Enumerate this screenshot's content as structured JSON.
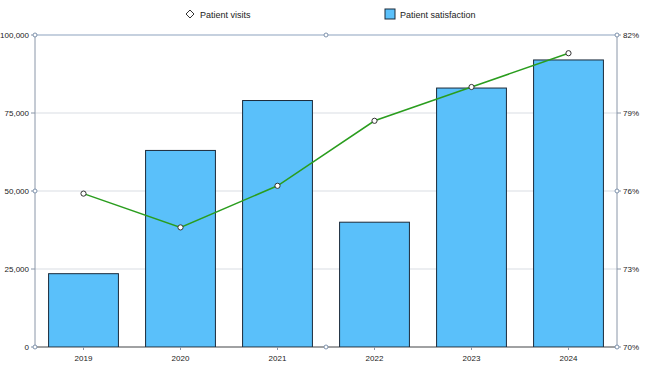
{
  "chart_data": {
    "type": "bar",
    "categories": [
      "2019",
      "2020",
      "2021",
      "2022",
      "2023",
      "2024"
    ],
    "series": [
      {
        "name": "Patient visits",
        "type": "line",
        "axis": "y2",
        "color": "#2a9d1e",
        "marker": "circle",
        "line_style": "solid",
        "values": [
          75.9,
          74.6,
          76.2,
          78.7,
          80.0,
          81.3
        ]
      },
      {
        "name": "Patient satisfaction",
        "type": "bar",
        "color": "#5ac0fa",
        "values": [
          23500,
          63000,
          79000,
          40000,
          83000,
          92000
        ]
      }
    ],
    "ylim": [
      0,
      100000
    ],
    "yticks": [
      0,
      {
        "value": 25000,
        "label": "25,000"
      },
      {
        "value": 50000,
        "label": "50,000"
      },
      {
        "value": 75000,
        "label": "75,000"
      },
      {
        "value": 100000,
        "label": "100,000"
      }
    ],
    "y2lim": [
      70,
      82
    ],
    "y2ticks": [
      {
        "value": 70,
        "label": "70%"
      },
      {
        "value": 73,
        "label": "73%"
      },
      {
        "value": 76,
        "label": "76%"
      },
      {
        "value": 79,
        "label": "79%"
      },
      {
        "value": 82,
        "label": "82%"
      }
    ],
    "grid": true
  }
}
